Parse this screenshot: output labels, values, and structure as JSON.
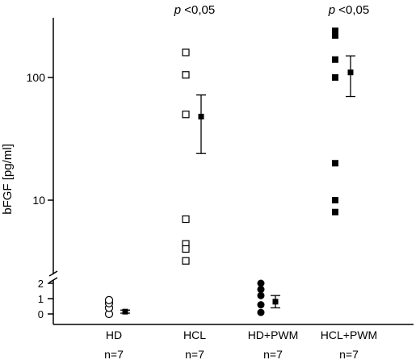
{
  "chart_data": {
    "type": "scatter",
    "title": "",
    "ylabel": "bFGF [pg/ml]",
    "xlabel": "",
    "y_scale": "broken: log upper segment, linear lower segment",
    "upper_ylim": [
      3,
      330
    ],
    "lower_ylim": [
      0,
      2
    ],
    "upper_ticks": [
      {
        "v": 10,
        "label": "10"
      },
      {
        "v": 100,
        "label": "100"
      }
    ],
    "lower_ticks": [
      {
        "v": 0,
        "label": "0"
      },
      {
        "v": 1,
        "label": "1"
      },
      {
        "v": 2,
        "label": "2"
      }
    ],
    "grid": false,
    "groups": [
      {
        "label": "HD",
        "n": "n=7",
        "marker": "open-circle",
        "values": [
          0.0,
          0.4,
          0.7,
          0.9
        ],
        "mean": 0.15,
        "err_low": 0.05,
        "err_high": 0.25,
        "annotation": ""
      },
      {
        "label": "HCL",
        "n": "n=7",
        "marker": "open-square",
        "values": [
          160,
          105,
          50,
          7,
          4.4,
          4.0,
          3.2
        ],
        "mean": 48,
        "err_low": 24,
        "err_high": 72,
        "annotation_p": "p",
        "annotation_rest": " <0,05"
      },
      {
        "label": "HD+PWM",
        "n": "n=7",
        "marker": "filled-circle",
        "values": [
          2.0,
          1.6,
          1.2,
          0.6,
          0.1
        ],
        "mean": 0.8,
        "err_low": 0.4,
        "err_high": 1.2,
        "annotation": ""
      },
      {
        "label": "HCL+PWM",
        "n": "n=7",
        "marker": "filled-square",
        "values": [
          240,
          220,
          140,
          100,
          20,
          10,
          8
        ],
        "mean": 110,
        "err_low": 70,
        "err_high": 150,
        "annotation_p": "p",
        "annotation_rest": " <0,05"
      }
    ]
  }
}
